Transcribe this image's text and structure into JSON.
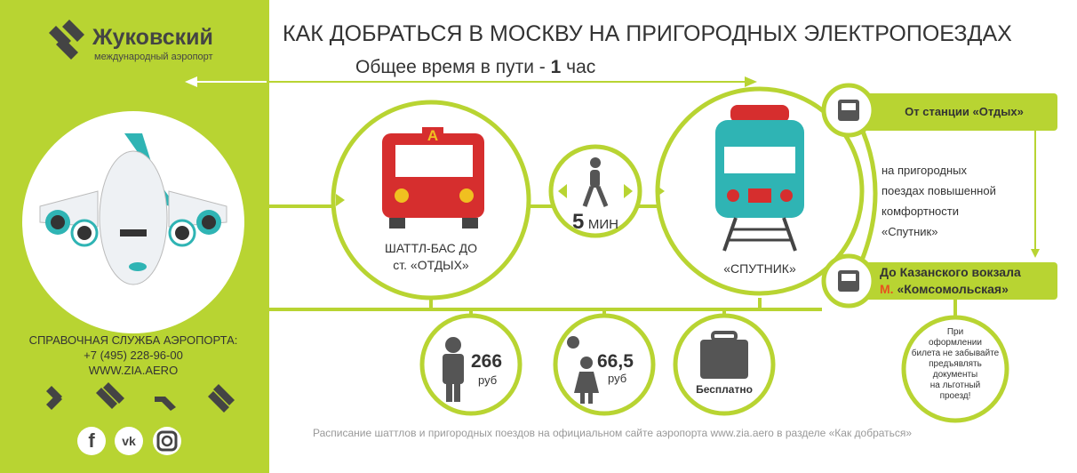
{
  "colors": {
    "green": "#b8d432",
    "dark": "#444444",
    "red": "#d62e2e",
    "teal": "#2fb4b4",
    "accent_orange": "#e8531f"
  },
  "logo": {
    "name": "Жуковский",
    "subtitle": "международный аэропорт"
  },
  "title": "КАК ДОБРАТЬСЯ В МОСКВУ НА ПРИГОРОДНЫХ ЭЛЕКТРОПОЕЗДАХ",
  "total_time": {
    "prefix": "Общее время в пути -",
    "value": "1",
    "unit": "час"
  },
  "bus": {
    "line1": "ШАТТЛ-БАС ДО",
    "line2": "ст. «ОТДЫХ»",
    "badge": "А"
  },
  "walk": {
    "value": "5",
    "unit": "МИН"
  },
  "train": {
    "label": "«СПУТНИК»"
  },
  "route": {
    "from": "От станции «Отдых»",
    "desc": [
      "на пригородных",
      "поездах повышенной",
      "комфортности",
      "«Спутник»"
    ],
    "to_line1": "До Казанского вокзала",
    "to_metro_prefix": "М.",
    "to_metro": "«Комсомольская»",
    "note": [
      "При",
      "оформлении",
      "билета не забывайте",
      "предъявлять",
      "документы",
      "на льготный",
      "проезд!"
    ]
  },
  "prices": [
    {
      "icon": "adult-icon",
      "value": "266",
      "unit": "руб"
    },
    {
      "icon": "child-icon",
      "value": "66,5",
      "unit": "руб"
    },
    {
      "icon": "luggage-icon",
      "value": "Бесплатно"
    }
  ],
  "contacts": {
    "label": "СПРАВОЧНАЯ СЛУЖБА АЭРОПОРТА:",
    "phone": "+7 (495) 228-96-00",
    "site": "WWW.ZIA.AERO"
  },
  "social": [
    "facebook",
    "vk",
    "instagram"
  ],
  "social_labels": [
    "f",
    "vk"
  ],
  "footer": "Расписание шаттлов и пригородных поездов на официальном сайте аэропорта www.zia.aero в разделе «Как добраться»"
}
